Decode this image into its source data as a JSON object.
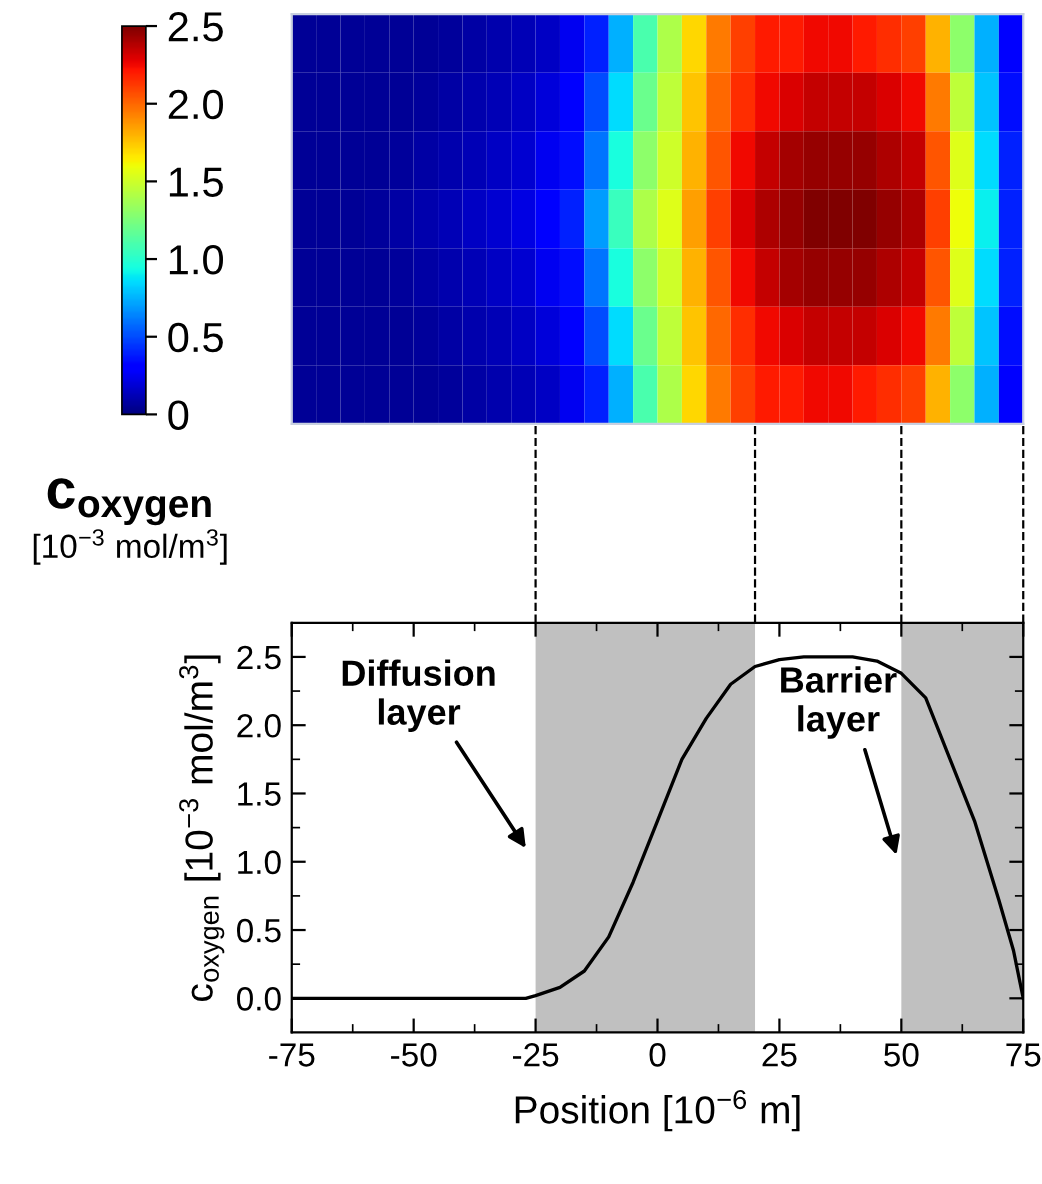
{
  "chart_data": [
    {
      "type": "heatmap",
      "categories": [
        null,
        null,
        null,
        null,
        null,
        null,
        null,
        null,
        null,
        null,
        null,
        null,
        null,
        null,
        null,
        null,
        null,
        null,
        null,
        null,
        null,
        null,
        null,
        null,
        null,
        null,
        null,
        null,
        null,
        null
      ],
      "y_categories": [
        null,
        null,
        null,
        null,
        null,
        null,
        null
      ],
      "cells": [
        [
          0.05,
          0.05,
          0.05,
          0.05,
          0.05,
          0.05,
          0.06,
          0.08,
          0.1,
          0.12,
          0.15,
          0.25,
          0.4,
          0.75,
          1.1,
          1.4,
          1.7,
          1.95,
          2.1,
          2.2,
          2.2,
          2.25,
          2.25,
          2.2,
          2.15,
          2.1,
          1.8,
          1.3,
          0.75,
          0.3
        ],
        [
          0.05,
          0.05,
          0.05,
          0.05,
          0.05,
          0.06,
          0.08,
          0.1,
          0.12,
          0.15,
          0.2,
          0.3,
          0.5,
          0.85,
          1.2,
          1.45,
          1.75,
          2.0,
          2.15,
          2.25,
          2.3,
          2.35,
          2.35,
          2.35,
          2.3,
          2.25,
          1.95,
          1.45,
          0.8,
          0.35
        ],
        [
          0.05,
          0.05,
          0.05,
          0.05,
          0.06,
          0.08,
          0.1,
          0.12,
          0.15,
          0.18,
          0.25,
          0.35,
          0.6,
          0.95,
          1.3,
          1.5,
          1.8,
          2.05,
          2.25,
          2.35,
          2.42,
          2.45,
          2.45,
          2.45,
          2.4,
          2.35,
          2.05,
          1.55,
          0.85,
          0.4
        ],
        [
          0.05,
          0.05,
          0.05,
          0.06,
          0.08,
          0.1,
          0.12,
          0.15,
          0.18,
          0.22,
          0.3,
          0.4,
          0.7,
          1.05,
          1.4,
          1.55,
          1.85,
          2.1,
          2.3,
          2.4,
          2.45,
          2.5,
          2.5,
          2.5,
          2.45,
          2.4,
          2.1,
          1.6,
          0.9,
          0.4
        ],
        [
          0.05,
          0.05,
          0.05,
          0.05,
          0.06,
          0.08,
          0.1,
          0.12,
          0.15,
          0.18,
          0.25,
          0.35,
          0.6,
          0.95,
          1.3,
          1.5,
          1.8,
          2.05,
          2.25,
          2.35,
          2.42,
          2.45,
          2.45,
          2.45,
          2.4,
          2.35,
          2.05,
          1.55,
          0.85,
          0.4
        ],
        [
          0.05,
          0.05,
          0.05,
          0.05,
          0.05,
          0.06,
          0.08,
          0.1,
          0.12,
          0.15,
          0.2,
          0.3,
          0.5,
          0.85,
          1.2,
          1.45,
          1.75,
          2.0,
          2.15,
          2.25,
          2.3,
          2.35,
          2.35,
          2.35,
          2.3,
          2.25,
          1.95,
          1.45,
          0.8,
          0.35
        ],
        [
          0.05,
          0.05,
          0.05,
          0.05,
          0.05,
          0.05,
          0.06,
          0.08,
          0.1,
          0.12,
          0.15,
          0.25,
          0.4,
          0.75,
          1.1,
          1.4,
          1.7,
          1.95,
          2.1,
          2.2,
          2.2,
          2.25,
          2.25,
          2.2,
          2.15,
          2.1,
          1.8,
          1.3,
          0.75,
          0.3
        ]
      ],
      "clim": [
        0,
        2.5
      ],
      "cticks": [
        0,
        0.5,
        {
          "value": 1,
          "label": "1.0"
        },
        1.5,
        {
          "value": 2,
          "label": "2.0"
        },
        2.5
      ],
      "clabel": "c$_{oxygen}$\n[10$^{−3}$ mol/m$^{3}$]"
    },
    {
      "type": "line",
      "series": [
        {
          "color": "#000000",
          "x": [
            -75,
            -27,
            -25,
            -20,
            -15,
            -10,
            -5,
            0,
            5,
            10,
            15,
            20,
            25,
            30,
            40,
            45,
            50,
            55,
            60,
            65,
            70,
            73,
            75
          ],
          "values": [
            0,
            0,
            0.02,
            0.08,
            0.2,
            0.45,
            0.85,
            1.3,
            1.75,
            2.05,
            2.3,
            2.43,
            2.48,
            2.5,
            2.5,
            2.47,
            2.38,
            2.2,
            1.75,
            1.3,
            0.72,
            0.35,
            0
          ]
        }
      ],
      "xlim": [
        -75,
        75
      ],
      "ylim": [
        -0.25,
        2.75
      ],
      "xticks": [
        -75,
        -50,
        -25,
        0,
        25,
        50,
        75
      ],
      "yticks": [
        {
          "value": 0,
          "label": "0.0"
        },
        0.5,
        {
          "value": 1,
          "label": "1.0"
        },
        1.5,
        {
          "value": 2,
          "label": "2.0"
        },
        2.5
      ],
      "xlabel": "Position [10$^{−6}$ m]",
      "ylabel": "c$_{oxygen}$ [10$^{−3}$ mol/m$^{3}$]",
      "bands": [
        {
          "axis": "x",
          "from": -25,
          "to": 20,
          "color": "#c0c0c0"
        },
        {
          "axis": "x",
          "from": 50,
          "to": 75,
          "color": "#c0c0c0"
        }
      ],
      "annotations": [
        {
          "text": "Diffusion\nlayer",
          "x": -27,
          "y": 1.1
        },
        {
          "text": "Barrier\nlayer",
          "x": 49,
          "y": 1.05
        }
      ],
      "grid": false,
      "legend": false,
      "marker": "none",
      "line_style": "solid"
    }
  ]
}
